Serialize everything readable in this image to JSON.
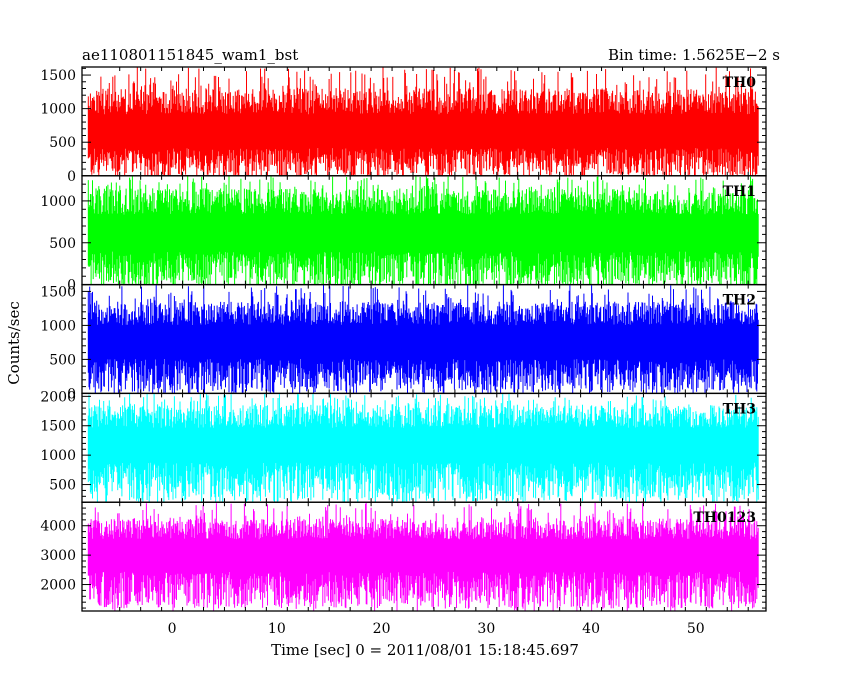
{
  "header": {
    "left_title": "ae110801151845_wam1_bst",
    "right_title": "Bin time: 1.5625E−2 s"
  },
  "chart_data": {
    "type": "line",
    "xlabel": "Time [sec] 0 = 2011/08/01 15:18:45.697",
    "ylabel": "Counts/sec",
    "xlim": [
      -8.6,
      56.7
    ],
    "x_ticks": [
      0,
      10,
      20,
      30,
      40,
      50
    ],
    "x_data_range": [
      -8.0,
      56.0
    ],
    "bin_time": 0.015625,
    "panels": [
      {
        "name": "TH0",
        "color": "#ff0000",
        "ylim": [
          0,
          1620
        ],
        "y_ticks": [
          0,
          500,
          1000,
          1500
        ],
        "center": 600,
        "low": 100,
        "high": 1300,
        "max": 1620
      },
      {
        "name": "TH1",
        "color": "#00ff00",
        "ylim": [
          0,
          1300
        ],
        "y_ticks": [
          0,
          500,
          1000
        ],
        "center": 580,
        "low": 80,
        "high": 1150,
        "max": 1300
      },
      {
        "name": "TH2",
        "color": "#0000ff",
        "ylim": [
          0,
          1600
        ],
        "y_ticks": [
          0,
          500,
          1000,
          1500
        ],
        "center": 720,
        "low": 150,
        "high": 1350,
        "max": 1600
      },
      {
        "name": "TH3",
        "color": "#00ffff",
        "ylim": [
          200,
          2050
        ],
        "y_ticks": [
          500,
          1000,
          1500,
          2000
        ],
        "center": 1150,
        "low": 400,
        "high": 1850,
        "max": 2050
      },
      {
        "name": "TH0123",
        "color": "#ff00ff",
        "ylim": [
          1100,
          4800
        ],
        "y_ticks": [
          2000,
          3000,
          4000
        ],
        "center": 2950,
        "low": 1550,
        "high": 4250,
        "max": 4800
      }
    ]
  }
}
